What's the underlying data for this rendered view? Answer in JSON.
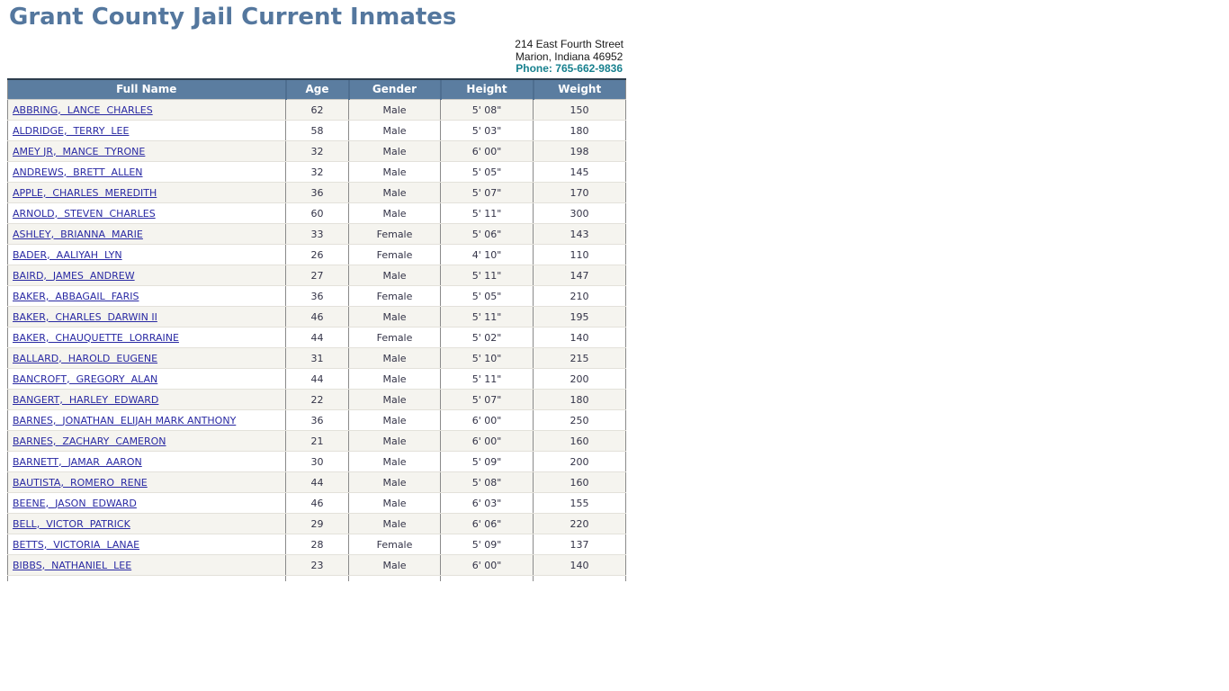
{
  "page_title": "Grant County Jail Current Inmates",
  "address": {
    "street": "214 East Fourth Street",
    "city_state_zip": "Marion, Indiana 46952",
    "phone": "Phone: 765-662-9836"
  },
  "colors": {
    "title": "#54779e",
    "header_bg": "#5b7da0",
    "header_text": "#ffffff",
    "phone": "#17808e",
    "link": "#2929a3",
    "cell_text": "#333347",
    "row_alt_bg": "#f5f4ef"
  },
  "table": {
    "columns": [
      "Full Name",
      "Age",
      "Gender",
      "Height",
      "Weight"
    ],
    "rows": [
      {
        "name": "ABBRING,  LANCE  CHARLES",
        "age": "62",
        "gender": "Male",
        "height": "5' 08\"",
        "weight": "150"
      },
      {
        "name": "ALDRIDGE,  TERRY  LEE",
        "age": "58",
        "gender": "Male",
        "height": "5' 03\"",
        "weight": "180"
      },
      {
        "name": "AMEY JR,  MANCE  TYRONE",
        "age": "32",
        "gender": "Male",
        "height": "6' 00\"",
        "weight": "198"
      },
      {
        "name": "ANDREWS,  BRETT  ALLEN",
        "age": "32",
        "gender": "Male",
        "height": "5' 05\"",
        "weight": "145"
      },
      {
        "name": "APPLE,  CHARLES  MEREDITH",
        "age": "36",
        "gender": "Male",
        "height": "5' 07\"",
        "weight": "170"
      },
      {
        "name": "ARNOLD,  STEVEN  CHARLES",
        "age": "60",
        "gender": "Male",
        "height": "5' 11\"",
        "weight": "300"
      },
      {
        "name": "ASHLEY,  BRIANNA  MARIE",
        "age": "33",
        "gender": "Female",
        "height": "5' 06\"",
        "weight": "143"
      },
      {
        "name": "BADER,  AALIYAH  LYN",
        "age": "26",
        "gender": "Female",
        "height": "4' 10\"",
        "weight": "110"
      },
      {
        "name": "BAIRD,  JAMES  ANDREW",
        "age": "27",
        "gender": "Male",
        "height": "5' 11\"",
        "weight": "147"
      },
      {
        "name": "BAKER,  ABBAGAIL  FARIS",
        "age": "36",
        "gender": "Female",
        "height": "5' 05\"",
        "weight": "210"
      },
      {
        "name": "BAKER,  CHARLES  DARWIN II",
        "age": "46",
        "gender": "Male",
        "height": "5' 11\"",
        "weight": "195"
      },
      {
        "name": "BAKER,  CHAUQUETTE  LORRAINE",
        "age": "44",
        "gender": "Female",
        "height": "5' 02\"",
        "weight": "140"
      },
      {
        "name": "BALLARD,  HAROLD  EUGENE",
        "age": "31",
        "gender": "Male",
        "height": "5' 10\"",
        "weight": "215"
      },
      {
        "name": "BANCROFT,  GREGORY  ALAN",
        "age": "44",
        "gender": "Male",
        "height": "5' 11\"",
        "weight": "200"
      },
      {
        "name": "BANGERT,  HARLEY  EDWARD",
        "age": "22",
        "gender": "Male",
        "height": "5' 07\"",
        "weight": "180"
      },
      {
        "name": "BARNES,  JONATHAN  ELIJAH MARK ANTHONY",
        "age": "36",
        "gender": "Male",
        "height": "6' 00\"",
        "weight": "250"
      },
      {
        "name": "BARNES,  ZACHARY  CAMERON",
        "age": "21",
        "gender": "Male",
        "height": "6' 00\"",
        "weight": "160"
      },
      {
        "name": "BARNETT,  JAMAR  AARON",
        "age": "30",
        "gender": "Male",
        "height": "5' 09\"",
        "weight": "200"
      },
      {
        "name": "BAUTISTA,  ROMERO  RENE",
        "age": "44",
        "gender": "Male",
        "height": "5' 08\"",
        "weight": "160"
      },
      {
        "name": "BEENE,  JASON  EDWARD",
        "age": "46",
        "gender": "Male",
        "height": "6' 03\"",
        "weight": "155"
      },
      {
        "name": "BELL,  VICTOR  PATRICK",
        "age": "29",
        "gender": "Male",
        "height": "6' 06\"",
        "weight": "220"
      },
      {
        "name": "BETTS,  VICTORIA  LANAE",
        "age": "28",
        "gender": "Female",
        "height": "5' 09\"",
        "weight": "137"
      },
      {
        "name": "BIBBS,  NATHANIEL  LEE",
        "age": "23",
        "gender": "Male",
        "height": "6' 00\"",
        "weight": "140"
      }
    ]
  }
}
